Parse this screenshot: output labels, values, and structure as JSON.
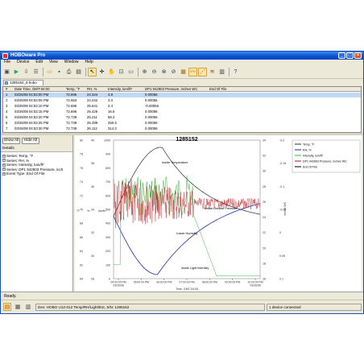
{
  "window": {
    "title": "HOBOware Pro",
    "controls": {
      "minimize": "_",
      "maximize": "□",
      "close": "×"
    }
  },
  "menu": [
    "File",
    "Device",
    "Edit",
    "View",
    "Window",
    "Help"
  ],
  "toolbar": {
    "icons": [
      "device-icon",
      "launch-icon",
      "readout-icon",
      "status-icon",
      "open-icon",
      "save-icon",
      "print-icon",
      "print-preview-icon",
      "pointer-icon",
      "crosshair-icon",
      "hand-icon",
      "zoom-reset-icon",
      "zoom-in-icon",
      "zoom-out-icon",
      "zoom-x-icon",
      "zoom-y-icon",
      "grid-icon",
      "line-style-icon",
      "marker-icon",
      "legend-icon",
      "help-icon"
    ]
  },
  "doc_tab": {
    "label": "1285152_6.hobo"
  },
  "table": {
    "columns": [
      "#",
      "Date Time, GMT-04:00",
      "Temp, °F",
      "RH, %",
      "Intensity, lum/ft²",
      "DP1 942803 Pressure, inches WC",
      "End Of File"
    ],
    "rows": [
      [
        "1",
        "03/26/08 04:53:00 PM",
        "72.696",
        "24.344",
        "4.8",
        "0.00056",
        ""
      ],
      [
        "2",
        "03/26/08 04:53:05 PM",
        "72.653",
        "24.242",
        "3.3",
        "0.00056",
        ""
      ],
      [
        "3",
        "03/26/08 04:53:10 PM",
        "72.696",
        "25.641",
        "2.4",
        "-0.00056",
        ""
      ],
      [
        "4",
        "03/26/08 04:53:15 PM",
        "72.696",
        "25.426",
        "16.5",
        "0.00056",
        ""
      ],
      [
        "5",
        "03/26/08 04:53:20 PM",
        "72.739",
        "25.211",
        "58.2",
        "0.00056",
        ""
      ],
      [
        "6",
        "03/26/08 04:53:25 PM",
        "72.739",
        "25.499",
        "250.9",
        "0.00056",
        ""
      ],
      [
        "7",
        "03/26/08 04:53:30 PM",
        "72.739",
        "26.112",
        "314.3",
        "0.00056",
        ""
      ]
    ]
  },
  "left_pane": {
    "show_all": "Show All",
    "hide_all": "Hide All",
    "details_label": "Details",
    "tree": [
      "Series: Temp, °F",
      "Series: RH, %",
      "Series: Intensity, lum/ft²",
      "Series: DP1 942803 Pressure, inch",
      "Event Type: End Of File"
    ]
  },
  "chart_data": {
    "type": "line",
    "title": "1285152",
    "xlabel": "Time, GMT-04:00",
    "x_ticks": [
      "04:00:00 PM\n03/26/08",
      "05:00:00 PM",
      "06:00:00 PM",
      "07:00:00 PM",
      "08:00:00 PM",
      "09:00:00 PM",
      "10:00:00 PM\n03/26/08"
    ],
    "axes": {
      "temp_f": {
        "label": "°F",
        "ticks": [
          60,
          62,
          64,
          66,
          68,
          70,
          72,
          74,
          76,
          78,
          80
        ]
      },
      "rh_pct": {
        "label": "%",
        "ticks": [
          28,
          30,
          32,
          34,
          36,
          38,
          40
        ]
      },
      "intensity": {
        "label": "lum/ft²",
        "ticks": [
          0,
          100,
          200,
          300,
          400,
          500,
          600,
          700,
          800,
          900,
          1000
        ]
      },
      "pressure": {
        "label": "inches WC",
        "ticks": [
          0.1,
          0.05,
          0,
          -0.05,
          -0.1,
          -0.15,
          -0.2
        ]
      },
      "right_rh": {
        "ticks": [
          16,
          18,
          20,
          22,
          24,
          26,
          28,
          30,
          32,
          34
        ]
      }
    },
    "series": [
      {
        "name": "Temp, °F",
        "color": "#2c2c2c"
      },
      {
        "name": "RH, %",
        "color": "#1e2e9e"
      },
      {
        "name": "Intensity, lum/ft²",
        "color": "#36b536"
      },
      {
        "name": "DP1 942803 Pressure, inches WC",
        "color": "#b0141a"
      },
      {
        "name": "End Of File",
        "color": "#000000"
      }
    ],
    "annotations": [
      "Inside Temperature",
      "Inside-Outside Pressure",
      "Inside Humidity",
      "Inside Light Intensity"
    ]
  },
  "status": {
    "text": "Ready.",
    "device": "Dev: HOBO U12-012 Temp/RH/Light/Ext, S/N: 1285152",
    "connection": "1 device connected"
  }
}
